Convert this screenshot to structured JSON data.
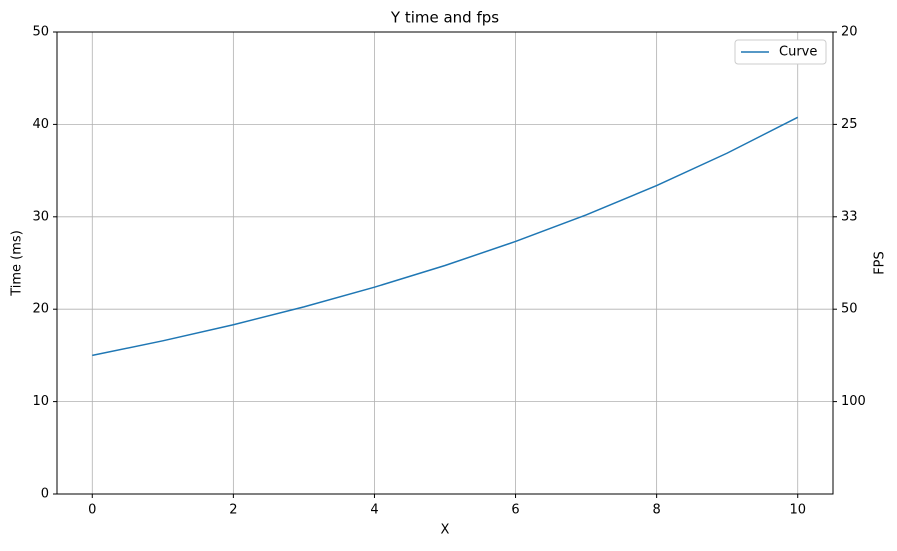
{
  "chart_data": {
    "type": "line",
    "title": "Y time and fps",
    "xlabel": "X",
    "ylabel": "Time (ms)",
    "y2label": "FPS",
    "x": [
      0,
      1,
      2,
      3,
      4,
      5,
      6,
      7,
      8,
      9,
      10
    ],
    "series": [
      {
        "name": "Curve",
        "color": "#1f77b4",
        "values": [
          15,
          16.58,
          18.32,
          20.25,
          22.38,
          24.73,
          27.33,
          30.2,
          33.38,
          36.89,
          40.77
        ]
      }
    ],
    "xlim": [
      -0.5,
      10.5
    ],
    "xticks": [
      0,
      2,
      4,
      6,
      8,
      10
    ],
    "ylim": [
      0,
      50
    ],
    "yticks": [
      0,
      10,
      20,
      30,
      40,
      50
    ],
    "y2ticks": [
      20,
      25,
      {
        "value": 33.333,
        "label": "33"
      },
      50,
      100
    ],
    "y2_transform": {
      "type": "reciprocal",
      "scale": 1000
    },
    "grid": true,
    "legend": "upper right"
  }
}
